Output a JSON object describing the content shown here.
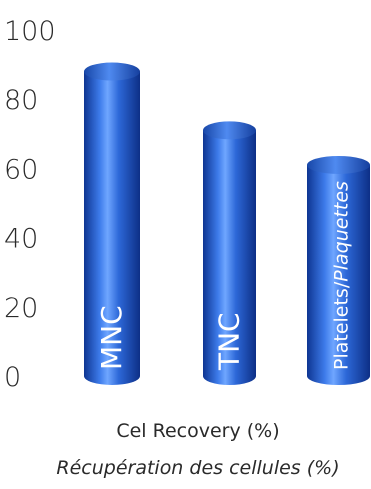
{
  "chart_data": {
    "type": "bar",
    "categories": [
      "MNC",
      "TNC",
      "Platelets/Plaquettes"
    ],
    "values": [
      88,
      71,
      61
    ],
    "xlabel": "Cel Recovery (%)",
    "xlabel_fr": "Récupération des cellules (%)",
    "ylabel": "",
    "ylim": [
      0,
      100
    ],
    "yticks": [
      "0",
      "20",
      "40",
      "60",
      "80",
      "100"
    ],
    "grid": false,
    "bar_color": "#1f5fd6",
    "bar_highlight": "#6fa6ff",
    "bar_shadow": "#0d2f86"
  }
}
